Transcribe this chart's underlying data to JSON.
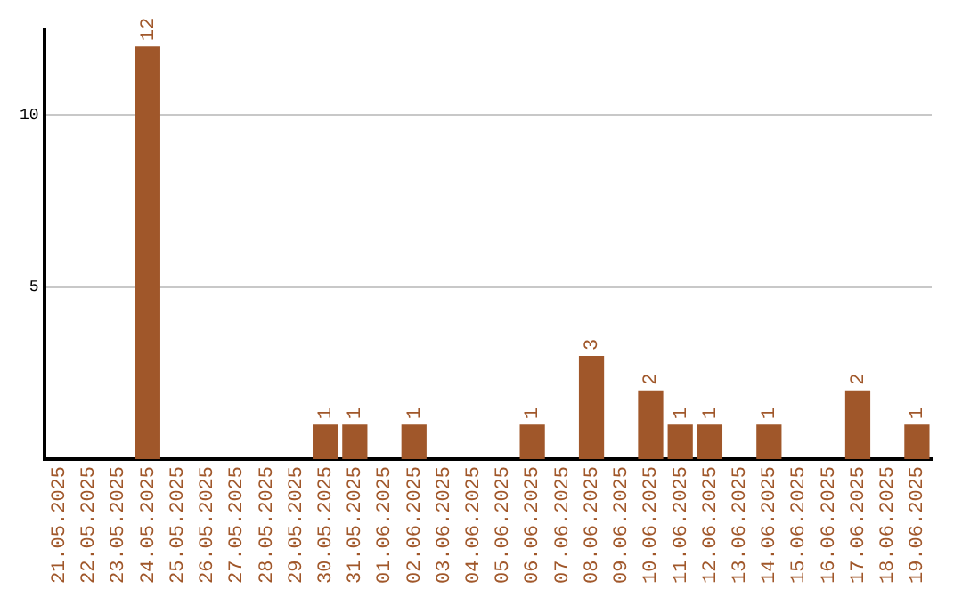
{
  "chart_data": {
    "type": "bar",
    "categories": [
      "21.05.2025",
      "22.05.2025",
      "23.05.2025",
      "24.05.2025",
      "25.05.2025",
      "26.05.2025",
      "27.05.2025",
      "28.05.2025",
      "29.05.2025",
      "30.05.2025",
      "31.05.2025",
      "01.06.2025",
      "02.06.2025",
      "03.06.2025",
      "04.06.2025",
      "05.06.2025",
      "06.06.2025",
      "07.06.2025",
      "08.06.2025",
      "09.06.2025",
      "10.06.2025",
      "11.06.2025",
      "12.06.2025",
      "13.06.2025",
      "14.06.2025",
      "15.06.2025",
      "16.06.2025",
      "17.06.2025",
      "18.06.2025",
      "19.06.2025"
    ],
    "values": [
      0,
      0,
      0,
      12,
      0,
      0,
      0,
      0,
      0,
      1,
      1,
      0,
      1,
      0,
      0,
      0,
      1,
      0,
      3,
      0,
      2,
      1,
      1,
      0,
      1,
      0,
      0,
      2,
      0,
      1
    ],
    "value_labels": [
      null,
      null,
      null,
      "12",
      null,
      null,
      null,
      null,
      null,
      "1",
      "1",
      null,
      "1",
      null,
      null,
      null,
      "1",
      null,
      "3",
      null,
      "2",
      "1",
      "1",
      null,
      "1",
      null,
      null,
      "2",
      null,
      "1"
    ],
    "color": "#a0572a",
    "ylim": [
      0,
      12.5
    ],
    "yticks": [
      5,
      10
    ],
    "grid": "y",
    "legend": false
  }
}
